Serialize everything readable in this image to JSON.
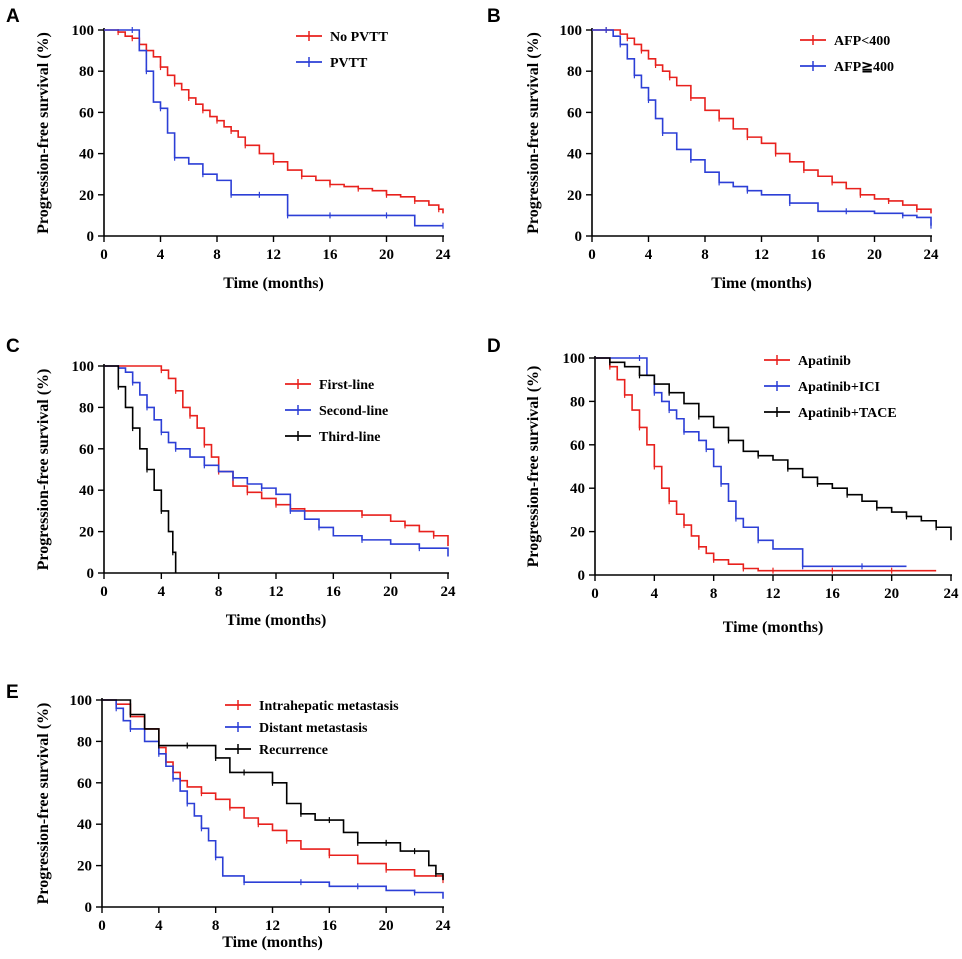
{
  "chart_data": [
    {
      "type": "line",
      "panel": "A",
      "xlabel": "Time (months)",
      "ylabel": "Progression-free survival (%)",
      "xlim": [
        0,
        24
      ],
      "ylim": [
        0,
        100
      ],
      "xticks": [
        0,
        4,
        8,
        12,
        16,
        20,
        24
      ],
      "yticks": [
        0,
        20,
        40,
        60,
        80,
        100
      ],
      "legend_position": "top-right",
      "series": [
        {
          "name": "No PVTT",
          "color": "#e8211d",
          "x": [
            0,
            1,
            1.5,
            2,
            2.5,
            3,
            3.5,
            4,
            4.5,
            5,
            5.5,
            6,
            6.5,
            7,
            7.5,
            8,
            8.5,
            9,
            9.5,
            10,
            11,
            12,
            13,
            14,
            15,
            16,
            17,
            18,
            19,
            20,
            21,
            22,
            23,
            23.7,
            24
          ],
          "y": [
            100,
            99,
            97,
            96,
            93,
            90,
            87,
            82,
            78,
            74,
            71,
            67,
            64,
            61,
            58,
            56,
            53,
            51,
            48,
            44,
            40,
            36,
            32,
            29,
            27,
            25,
            24,
            23,
            22,
            20,
            19,
            17,
            15,
            13,
            11
          ]
        },
        {
          "name": "PVTT",
          "color": "#2c3fd6",
          "x": [
            0,
            2,
            2.5,
            3,
            3.5,
            4,
            4.5,
            5,
            6,
            7,
            8,
            9,
            10,
            11,
            12,
            13,
            14,
            16,
            18,
            20,
            22,
            24
          ],
          "y": [
            100,
            100,
            90,
            80,
            65,
            62,
            50,
            38,
            35,
            30,
            27,
            20,
            20,
            20,
            20,
            10,
            10,
            10,
            10,
            10,
            5,
            5
          ]
        }
      ]
    },
    {
      "type": "line",
      "panel": "B",
      "xlabel": "Time (months)",
      "ylabel": "Progression-free survival (%)",
      "xlim": [
        0,
        24
      ],
      "ylim": [
        0,
        100
      ],
      "xticks": [
        0,
        4,
        8,
        12,
        16,
        20,
        24
      ],
      "yticks": [
        0,
        20,
        40,
        60,
        80,
        100
      ],
      "legend_position": "top-right",
      "series": [
        {
          "name": "AFP<400",
          "color": "#e8211d",
          "x": [
            0,
            1,
            2,
            2.5,
            3,
            3.5,
            4,
            4.5,
            5,
            5.5,
            6,
            7,
            8,
            9,
            10,
            11,
            12,
            13,
            14,
            15,
            16,
            17,
            18,
            19,
            20,
            21,
            22,
            23,
            24
          ],
          "y": [
            100,
            100,
            98,
            96,
            93,
            90,
            86,
            83,
            80,
            77,
            73,
            67,
            61,
            57,
            52,
            48,
            45,
            40,
            36,
            32,
            29,
            26,
            23,
            20,
            18,
            17,
            15,
            13,
            11
          ]
        },
        {
          "name": "AFP≧400",
          "color": "#2c3fd6",
          "x": [
            0,
            1,
            1.5,
            2,
            2.5,
            3,
            3.5,
            4,
            4.5,
            5,
            6,
            7,
            8,
            9,
            10,
            11,
            12,
            14,
            16,
            18,
            20,
            22,
            23,
            24
          ],
          "y": [
            100,
            100,
            97,
            93,
            86,
            78,
            72,
            66,
            57,
            50,
            42,
            37,
            31,
            26,
            24,
            22,
            20,
            16,
            12,
            12,
            11,
            10,
            9,
            5
          ]
        }
      ]
    },
    {
      "type": "line",
      "panel": "C",
      "xlabel": "Time (months)",
      "ylabel": "Progression-free survival (%)",
      "xlim": [
        0,
        24
      ],
      "ylim": [
        0,
        100
      ],
      "xticks": [
        0,
        4,
        8,
        12,
        16,
        20,
        24
      ],
      "yticks": [
        0,
        20,
        40,
        60,
        80,
        100
      ],
      "legend_position": "top-right",
      "series": [
        {
          "name": "First-line",
          "color": "#e8211d",
          "x": [
            0,
            4,
            4.5,
            5,
            5.5,
            6,
            6.5,
            7,
            7.5,
            8,
            9,
            10,
            11,
            12,
            13,
            14,
            16,
            18,
            20,
            21,
            22,
            23,
            24
          ],
          "y": [
            100,
            98,
            94,
            88,
            80,
            76,
            70,
            62,
            56,
            49,
            42,
            39,
            36,
            33,
            31,
            30,
            30,
            28,
            25,
            23,
            20,
            18,
            13
          ]
        },
        {
          "name": "Second-line",
          "color": "#2c3fd6",
          "x": [
            0,
            1,
            1.5,
            2,
            2.5,
            3,
            3.5,
            4,
            4.5,
            5,
            6,
            7,
            8,
            9,
            10,
            11,
            12,
            13,
            14,
            15,
            16,
            18,
            20,
            22,
            24
          ],
          "y": [
            100,
            99,
            97,
            92,
            86,
            80,
            74,
            68,
            63,
            60,
            56,
            52,
            49,
            46,
            43,
            41,
            38,
            30,
            26,
            22,
            18,
            16,
            14,
            12,
            8
          ]
        },
        {
          "name": "Third-line",
          "color": "#000000",
          "x": [
            0,
            1,
            1.5,
            2,
            2.5,
            3,
            3.5,
            4,
            4.5,
            4.8,
            5
          ],
          "y": [
            100,
            90,
            80,
            70,
            60,
            50,
            40,
            30,
            20,
            10,
            0
          ]
        }
      ]
    },
    {
      "type": "line",
      "panel": "D",
      "xlabel": "Time (months)",
      "ylabel": "Progression-free survival (%)",
      "xlim": [
        0,
        24
      ],
      "ylim": [
        0,
        100
      ],
      "xticks": [
        0,
        4,
        8,
        12,
        16,
        20,
        24
      ],
      "yticks": [
        0,
        20,
        40,
        60,
        80,
        100
      ],
      "legend_position": "top-right",
      "series": [
        {
          "name": "Apatinib",
          "color": "#e8211d",
          "x": [
            0,
            1,
            1.5,
            2,
            2.5,
            3,
            3.5,
            4,
            4.5,
            5,
            5.5,
            6,
            6.5,
            7,
            7.5,
            8,
            9,
            10,
            11,
            12,
            14,
            16,
            18,
            20,
            23
          ],
          "y": [
            100,
            96,
            90,
            83,
            76,
            68,
            60,
            50,
            40,
            34,
            28,
            23,
            18,
            13,
            10,
            7,
            5,
            3,
            2,
            2,
            2,
            2,
            2,
            2,
            2
          ]
        },
        {
          "name": "Apatinib+ICI",
          "color": "#2c3fd6",
          "x": [
            0,
            3,
            3.5,
            4,
            4.5,
            5,
            5.5,
            6,
            7,
            7.5,
            8,
            8.5,
            9,
            9.5,
            10,
            11,
            12,
            14,
            16,
            18,
            21
          ],
          "y": [
            100,
            100,
            92,
            84,
            80,
            76,
            72,
            66,
            62,
            58,
            50,
            42,
            34,
            26,
            22,
            16,
            12,
            4,
            4,
            4,
            4
          ]
        },
        {
          "name": "Apatinib+TACE",
          "color": "#000000",
          "x": [
            0,
            1,
            2,
            3,
            4,
            5,
            6,
            7,
            8,
            9,
            10,
            11,
            12,
            13,
            14,
            15,
            16,
            17,
            18,
            19,
            20,
            21,
            22,
            23,
            24
          ],
          "y": [
            100,
            98,
            96,
            92,
            88,
            84,
            79,
            73,
            68,
            62,
            57,
            55,
            53,
            49,
            45,
            42,
            40,
            37,
            34,
            31,
            29,
            27,
            25,
            22,
            16
          ]
        }
      ]
    },
    {
      "type": "line",
      "panel": "E",
      "xlabel": "Time (months)",
      "ylabel": "Progression-free survival (%)",
      "xlim": [
        0,
        24
      ],
      "ylim": [
        0,
        100
      ],
      "xticks": [
        0,
        4,
        8,
        12,
        16,
        20,
        24
      ],
      "yticks": [
        0,
        20,
        40,
        60,
        80,
        100
      ],
      "legend_position": "top-right",
      "series": [
        {
          "name": "Intrahepatic metastasis",
          "color": "#e8211d",
          "x": [
            0,
            1,
            2,
            3,
            4,
            4.5,
            5,
            5.5,
            6,
            7,
            8,
            9,
            10,
            11,
            12,
            13,
            14,
            16,
            18,
            20,
            22,
            24
          ],
          "y": [
            100,
            98,
            92,
            86,
            77,
            70,
            65,
            61,
            58,
            55,
            52,
            48,
            43,
            40,
            37,
            32,
            28,
            25,
            21,
            18,
            15,
            13
          ]
        },
        {
          "name": "Distant metastasis",
          "color": "#2c3fd6",
          "x": [
            0,
            1,
            1.5,
            2,
            3,
            4,
            4.5,
            5,
            5.5,
            6,
            6.5,
            7,
            7.5,
            8,
            8.5,
            10,
            12,
            14,
            16,
            18,
            20,
            22,
            24
          ],
          "y": [
            100,
            96,
            90,
            86,
            80,
            74,
            68,
            62,
            56,
            50,
            44,
            38,
            32,
            24,
            15,
            12,
            12,
            12,
            10,
            10,
            8,
            7,
            4
          ]
        },
        {
          "name": "Recurrence",
          "color": "#000000",
          "x": [
            0,
            2,
            3,
            4,
            5,
            6,
            7,
            8,
            9,
            10,
            11,
            12,
            13,
            14,
            15,
            16,
            17,
            18,
            19,
            20,
            21,
            22,
            23,
            23.5,
            24
          ],
          "y": [
            100,
            93,
            86,
            78,
            78,
            78,
            78,
            72,
            65,
            65,
            65,
            60,
            50,
            45,
            42,
            42,
            36,
            31,
            31,
            31,
            27,
            27,
            20,
            16,
            13
          ]
        }
      ]
    }
  ]
}
